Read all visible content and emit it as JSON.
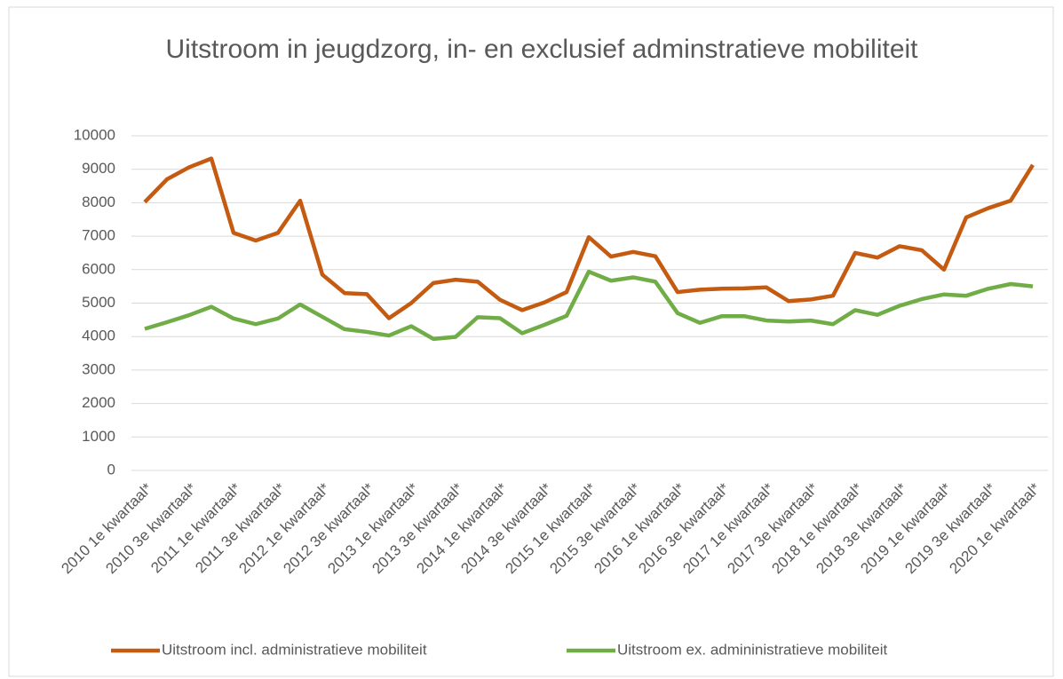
{
  "chart_data": {
    "type": "line",
    "title": "Uitstroom in jeugdzorg, in- en exclusief adminstratieve mobiliteit",
    "categories": [
      "2010 1e kwartaal*",
      null,
      "2010 3e kwartaal*",
      null,
      "2011 1e kwartaal*",
      null,
      "2011 3e kwartaal*",
      null,
      "2012 1e kwartaal*",
      null,
      "2012 3e kwartaal*",
      null,
      "2013 1e kwartaal*",
      null,
      "2013 3e kwartaal*",
      null,
      "2014 1e kwartaal*",
      null,
      "2014 3e kwartaal*",
      null,
      "2015 1e kwartaal*",
      null,
      "2015 3e kwartaal*",
      null,
      "2016 1e kwartaal*",
      null,
      "2016 3e kwartaal*",
      null,
      "2017 1e kwartaal*",
      null,
      "2017 3e kwartaal*",
      null,
      "2018 1e kwartaal*",
      null,
      "2018 3e kwartaal*",
      null,
      "2019 1e kwartaal*",
      null,
      "2019 3e kwartaal*",
      null,
      "2020 1e kwartaal*"
    ],
    "series": [
      {
        "name": "Uitstroom incl. administratieve mobiliteit",
        "color": "#c55a11",
        "values": [
          8020,
          8700,
          9060,
          9320,
          7100,
          6870,
          7100,
          8060,
          5850,
          5300,
          5270,
          4550,
          5000,
          5600,
          5700,
          5640,
          5100,
          4790,
          5020,
          5330,
          6970,
          6390,
          6530,
          6400,
          5330,
          5400,
          5430,
          5440,
          5470,
          5060,
          5110,
          5220,
          6500,
          6360,
          6700,
          6580,
          6000,
          7560,
          7840,
          8060,
          9130
        ]
      },
      {
        "name": "Uitstroom ex. admininistratieve mobiliteit",
        "color": "#70ad47",
        "values": [
          4230,
          4430,
          4640,
          4890,
          4540,
          4370,
          4540,
          4960,
          4590,
          4220,
          4140,
          4030,
          4310,
          3930,
          3990,
          4580,
          4550,
          4100,
          4350,
          4620,
          5940,
          5670,
          5770,
          5640,
          4700,
          4410,
          4610,
          4610,
          4480,
          4450,
          4480,
          4370,
          4790,
          4650,
          4920,
          5120,
          5260,
          5220,
          5430,
          5570,
          5500
        ]
      }
    ],
    "ylim": [
      0,
      10000
    ],
    "yticks": [
      0,
      1000,
      2000,
      3000,
      4000,
      5000,
      6000,
      7000,
      8000,
      9000,
      10000
    ],
    "grid": true,
    "legend": "bottom"
  }
}
